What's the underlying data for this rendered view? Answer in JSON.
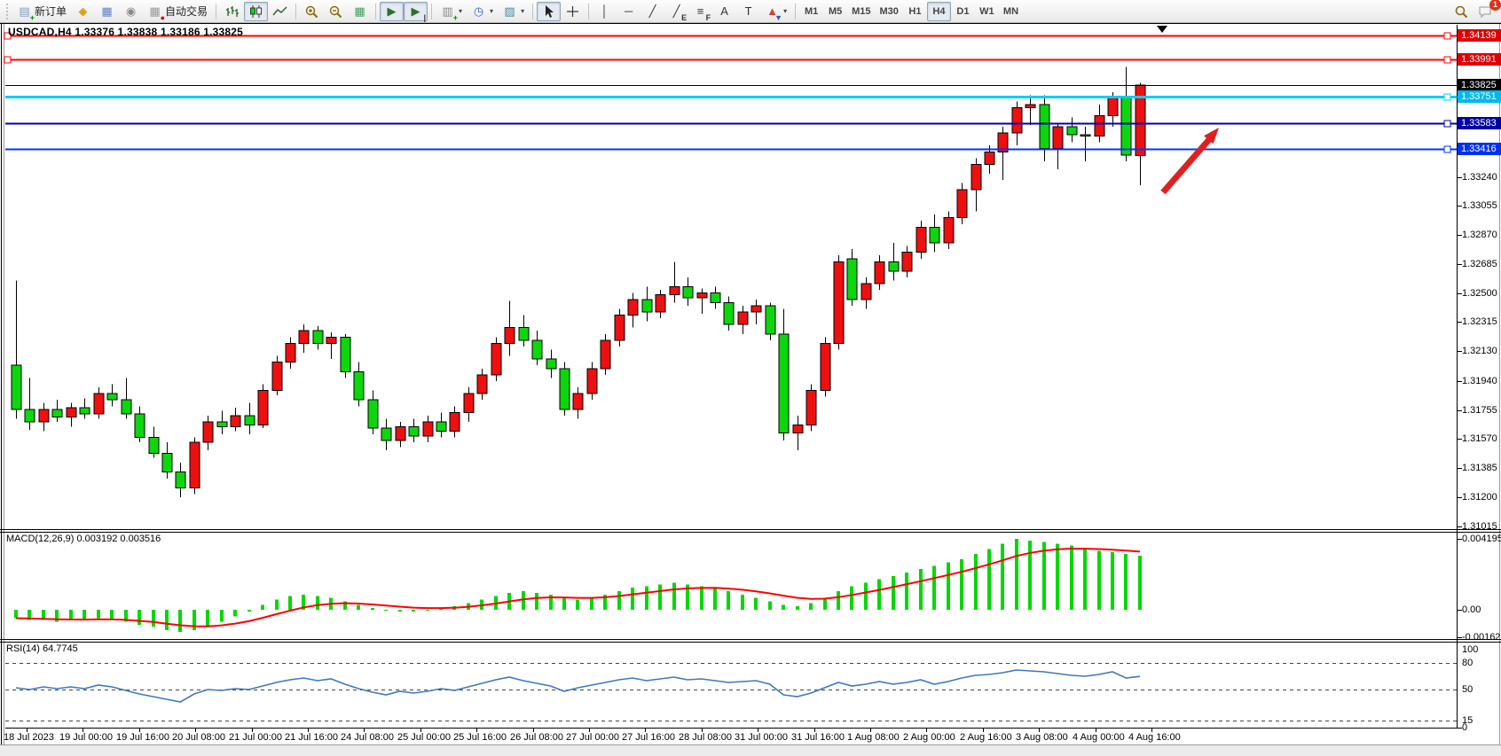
{
  "toolbar": {
    "left": [
      {
        "name": "new-order",
        "label": "新订单",
        "icon": "new-order-icon"
      },
      {
        "name": "market-watch",
        "icon": "market-watch-icon"
      },
      {
        "name": "navigator",
        "icon": "navigator-icon"
      },
      {
        "name": "signals",
        "icon": "signals-icon"
      },
      {
        "name": "autotrading",
        "label": "自动交易",
        "icon": "autotrading-icon"
      },
      {
        "sep": true
      },
      {
        "name": "bar-chart",
        "icon": "bar-chart-icon"
      },
      {
        "name": "candlestick-chart",
        "icon": "candlestick-icon",
        "active": true
      },
      {
        "name": "line-chart",
        "icon": "line-chart-icon"
      },
      {
        "sep": true
      },
      {
        "name": "zoom-in",
        "icon": "zoom-in-icon"
      },
      {
        "name": "zoom-out",
        "icon": "zoom-out-icon"
      },
      {
        "name": "tile-windows",
        "icon": "tile-windows-icon"
      },
      {
        "sep": true
      },
      {
        "name": "auto-scroll",
        "icon": "auto-scroll-icon",
        "active": true
      },
      {
        "name": "chart-shift",
        "icon": "chart-shift-icon",
        "active": true
      },
      {
        "sep": true
      },
      {
        "name": "indicators",
        "icon": "indicators-icon",
        "dropdown": true
      },
      {
        "name": "periods",
        "icon": "periods-icon",
        "dropdown": true
      },
      {
        "name": "templates",
        "icon": "templates-icon",
        "dropdown": true
      },
      {
        "sep": true
      },
      {
        "name": "cursor",
        "icon": "cursor-icon",
        "active": true
      },
      {
        "name": "crosshair",
        "icon": "crosshair-icon"
      },
      {
        "sep": true
      },
      {
        "name": "vertical-line",
        "icon": "vline-icon"
      },
      {
        "name": "horizontal-line",
        "icon": "hline-icon"
      },
      {
        "name": "trendline",
        "icon": "trendline-icon"
      },
      {
        "name": "equidistant-channel",
        "icon": "channel-icon"
      },
      {
        "name": "fibonacci",
        "icon": "fibonacci-icon"
      },
      {
        "name": "text",
        "icon": "text-icon"
      },
      {
        "name": "text-label",
        "icon": "text-label-icon"
      },
      {
        "name": "arrows",
        "icon": "arrows-icon",
        "dropdown": true
      },
      {
        "sep": true
      }
    ],
    "timeframes": [
      {
        "label": "M1"
      },
      {
        "label": "M5"
      },
      {
        "label": "M15"
      },
      {
        "label": "M30"
      },
      {
        "label": "H1"
      },
      {
        "label": "H4",
        "active": true
      },
      {
        "label": "D1"
      },
      {
        "label": "W1"
      },
      {
        "label": "MN"
      }
    ],
    "chat_badge": "1"
  },
  "chart_window": {
    "title": "USDCAD,H4  1.33376 1.33838 1.33186 1.33825"
  },
  "chart_data": {
    "type": "candlestick",
    "symbol": "USDCAD",
    "timeframe": "H4",
    "current_ohlc": {
      "open": "1.33376",
      "high": "1.33838",
      "low": "1.33186",
      "close": "1.33825"
    },
    "colors": {
      "bull": "#ee1010",
      "bear": "#0cd60c",
      "macd_hist": "#00d800",
      "macd_signal": "#ff0000",
      "rsi_line": "#3e78c0",
      "arrow": "#e02020"
    },
    "price_axis_ticks": [
      "1.33240",
      "1.33055",
      "1.32870",
      "1.32685",
      "1.32500",
      "1.32315",
      "1.32130",
      "1.31940",
      "1.31755",
      "1.31570",
      "1.31385",
      "1.31200",
      "1.31015"
    ],
    "time_axis": [
      "18 Jul 2023",
      "19 Jul 00:00",
      "19 Jul 16:00",
      "20 Jul 08:00",
      "21 Jul 00:00",
      "21 Jul 16:00",
      "24 Jul 08:00",
      "25 Jul 00:00",
      "25 Jul 16:00",
      "26 Jul 08:00",
      "27 Jul 00:00",
      "27 Jul 16:00",
      "28 Jul 08:00",
      "31 Jul 00:00",
      "31 Jul 16:00",
      "1 Aug 08:00",
      "2 Aug 00:00",
      "2 Aug 16:00",
      "3 Aug 08:00",
      "4 Aug 00:00",
      "4 Aug 16:00"
    ],
    "hlines": [
      {
        "price": 1.34139,
        "color": "#ff0000",
        "width": 2,
        "left_handle": true
      },
      {
        "price": 1.33991,
        "color": "#ff0000",
        "width": 2,
        "left_handle": true
      },
      {
        "price": 1.33825,
        "color": "#000000",
        "width": 1,
        "left_handle": false
      },
      {
        "price": 1.33751,
        "color": "#00ccff",
        "width": 3,
        "left_handle": false
      },
      {
        "price": 1.33583,
        "color": "#0000b0",
        "width": 2,
        "left_handle": false
      },
      {
        "price": 1.33416,
        "color": "#0033ff",
        "width": 2,
        "left_handle": false
      }
    ],
    "price_tags": [
      {
        "text": "1.34139",
        "price": 1.34139,
        "bg": "#e00000"
      },
      {
        "text": "1.33991",
        "price": 1.33991,
        "bg": "#e00000"
      },
      {
        "text": "1.33825",
        "price": 1.33825,
        "bg": "#000000"
      },
      {
        "text": "1.33751",
        "price": 1.33751,
        "bg": "#00b8ec"
      },
      {
        "text": "1.33583",
        "price": 1.33583,
        "bg": "#0000a8"
      },
      {
        "text": "1.33416",
        "price": 1.33416,
        "bg": "#0030f0"
      }
    ],
    "candles": [
      [
        1.3204,
        1.3258,
        1.317,
        1.3176
      ],
      [
        1.3176,
        1.3196,
        1.3163,
        1.3168
      ],
      [
        1.3168,
        1.318,
        1.3162,
        1.3176
      ],
      [
        1.3176,
        1.3182,
        1.3168,
        1.3171
      ],
      [
        1.3171,
        1.318,
        1.3165,
        1.3177
      ],
      [
        1.3177,
        1.3183,
        1.317,
        1.3173
      ],
      [
        1.3173,
        1.319,
        1.317,
        1.3186
      ],
      [
        1.3186,
        1.3192,
        1.3178,
        1.3182
      ],
      [
        1.3182,
        1.3196,
        1.317,
        1.3173
      ],
      [
        1.3173,
        1.3178,
        1.3155,
        1.3158
      ],
      [
        1.3158,
        1.3165,
        1.3145,
        1.3148
      ],
      [
        1.3148,
        1.3155,
        1.3132,
        1.3136
      ],
      [
        1.3136,
        1.3142,
        1.312,
        1.3126
      ],
      [
        1.3126,
        1.3158,
        1.3122,
        1.3155
      ],
      [
        1.3155,
        1.3172,
        1.315,
        1.3168
      ],
      [
        1.3168,
        1.3175,
        1.316,
        1.3165
      ],
      [
        1.3165,
        1.3177,
        1.3162,
        1.3172
      ],
      [
        1.3172,
        1.318,
        1.316,
        1.3166
      ],
      [
        1.3166,
        1.3192,
        1.3164,
        1.3188
      ],
      [
        1.3188,
        1.321,
        1.3185,
        1.3206
      ],
      [
        1.3206,
        1.3222,
        1.3202,
        1.3218
      ],
      [
        1.3218,
        1.323,
        1.3212,
        1.3226
      ],
      [
        1.3226,
        1.3229,
        1.3214,
        1.3218
      ],
      [
        1.3218,
        1.3225,
        1.3208,
        1.3222
      ],
      [
        1.3222,
        1.3224,
        1.3196,
        1.32
      ],
      [
        1.32,
        1.3206,
        1.3178,
        1.3182
      ],
      [
        1.3182,
        1.3188,
        1.316,
        1.3164
      ],
      [
        1.3164,
        1.317,
        1.315,
        1.3156
      ],
      [
        1.3156,
        1.3168,
        1.3152,
        1.3165
      ],
      [
        1.3165,
        1.317,
        1.3155,
        1.3159
      ],
      [
        1.3159,
        1.3172,
        1.3155,
        1.3168
      ],
      [
        1.3168,
        1.3174,
        1.3158,
        1.3162
      ],
      [
        1.3162,
        1.3178,
        1.3158,
        1.3174
      ],
      [
        1.3174,
        1.319,
        1.3168,
        1.3186
      ],
      [
        1.3186,
        1.3202,
        1.3182,
        1.3198
      ],
      [
        1.3198,
        1.3222,
        1.3194,
        1.3218
      ],
      [
        1.3218,
        1.3245,
        1.321,
        1.3228
      ],
      [
        1.3228,
        1.3236,
        1.3216,
        1.322
      ],
      [
        1.322,
        1.3226,
        1.3204,
        1.3208
      ],
      [
        1.3208,
        1.3214,
        1.3196,
        1.3202
      ],
      [
        1.3202,
        1.3206,
        1.3172,
        1.3176
      ],
      [
        1.3176,
        1.319,
        1.317,
        1.3186
      ],
      [
        1.3186,
        1.3206,
        1.3182,
        1.3202
      ],
      [
        1.3202,
        1.3224,
        1.3198,
        1.322
      ],
      [
        1.322,
        1.324,
        1.3216,
        1.3236
      ],
      [
        1.3236,
        1.325,
        1.3228,
        1.3246
      ],
      [
        1.3246,
        1.3254,
        1.3232,
        1.3238
      ],
      [
        1.3238,
        1.3252,
        1.3234,
        1.3249
      ],
      [
        1.3249,
        1.327,
        1.3244,
        1.3254
      ],
      [
        1.3254,
        1.326,
        1.3242,
        1.3247
      ],
      [
        1.3247,
        1.3253,
        1.3237,
        1.325
      ],
      [
        1.325,
        1.3254,
        1.324,
        1.3244
      ],
      [
        1.3244,
        1.3248,
        1.3226,
        1.323
      ],
      [
        1.323,
        1.3242,
        1.3224,
        1.3238
      ],
      [
        1.3238,
        1.3246,
        1.323,
        1.3242
      ],
      [
        1.3242,
        1.3244,
        1.322,
        1.3224
      ],
      [
        1.3224,
        1.324,
        1.3156,
        1.3161
      ],
      [
        1.3161,
        1.3172,
        1.315,
        1.3166
      ],
      [
        1.3166,
        1.3192,
        1.3162,
        1.3188
      ],
      [
        1.3188,
        1.3222,
        1.3184,
        1.3218
      ],
      [
        1.3218,
        1.3274,
        1.3214,
        1.327
      ],
      [
        1.3272,
        1.3278,
        1.3242,
        1.3246
      ],
      [
        1.3246,
        1.326,
        1.324,
        1.3256
      ],
      [
        1.3256,
        1.3274,
        1.3252,
        1.327
      ],
      [
        1.327,
        1.3282,
        1.3258,
        1.3264
      ],
      [
        1.3264,
        1.328,
        1.326,
        1.3276
      ],
      [
        1.3276,
        1.3296,
        1.3272,
        1.3292
      ],
      [
        1.3292,
        1.33,
        1.3276,
        1.3282
      ],
      [
        1.3282,
        1.3302,
        1.3278,
        1.3298
      ],
      [
        1.3298,
        1.332,
        1.3294,
        1.3316
      ],
      [
        1.3316,
        1.3336,
        1.3302,
        1.3332
      ],
      [
        1.3332,
        1.3344,
        1.3326,
        1.334
      ],
      [
        1.334,
        1.3356,
        1.3322,
        1.3352
      ],
      [
        1.3352,
        1.3372,
        1.3344,
        1.3368
      ],
      [
        1.3368,
        1.3376,
        1.3357,
        1.337
      ],
      [
        1.337,
        1.3376,
        1.3334,
        1.3342
      ],
      [
        1.3342,
        1.3358,
        1.3329,
        1.3356
      ],
      [
        1.3356,
        1.3362,
        1.3346,
        1.3351
      ],
      [
        1.3351,
        1.3356,
        1.3334,
        1.335
      ],
      [
        1.335,
        1.337,
        1.3346,
        1.3363
      ],
      [
        1.3363,
        1.3378,
        1.3356,
        1.3375
      ],
      [
        1.3375,
        1.3394,
        1.3334,
        1.3338
      ],
      [
        1.33376,
        1.33838,
        1.33186,
        1.33825
      ]
    ],
    "macd": {
      "label": "MACD(12,26,9) 0.003192 0.003516",
      "main_value": "0.003192",
      "signal_value": "0.003516",
      "axis_labels": [
        {
          "text": "0.004195",
          "v": 0.004195
        },
        {
          "text": "0.00",
          "v": 0
        },
        {
          "text": "-0.001625",
          "v": -0.001625
        }
      ],
      "values": [
        -0.0005,
        -0.0006,
        -0.0006,
        -0.0007,
        -0.0006,
        -0.0006,
        -0.0005,
        -0.0006,
        -0.0007,
        -0.0009,
        -0.001,
        -0.0012,
        -0.0013,
        -0.0012,
        -0.001,
        -0.0007,
        -0.0004,
        -0.0001,
        0.0003,
        0.0006,
        0.0008,
        0.0009,
        0.0008,
        0.0007,
        0.0005,
        0.0003,
        0.0001,
        0.0,
        -0.0001,
        -0.0001,
        0.0,
        0.0001,
        0.0002,
        0.0004,
        0.0006,
        0.0008,
        0.001,
        0.0011,
        0.001,
        0.0009,
        0.0007,
        0.0006,
        0.0007,
        0.0009,
        0.0011,
        0.0013,
        0.0014,
        0.0015,
        0.0016,
        0.0015,
        0.0014,
        0.0013,
        0.0011,
        0.0009,
        0.0007,
        0.0005,
        0.0003,
        0.0002,
        0.0004,
        0.0007,
        0.0011,
        0.0014,
        0.0016,
        0.0018,
        0.002,
        0.0022,
        0.0024,
        0.0026,
        0.0028,
        0.003,
        0.0033,
        0.0036,
        0.0039,
        0.0042,
        0.0041,
        0.004,
        0.0039,
        0.0038,
        0.0036,
        0.0035,
        0.0034,
        0.0033,
        0.0032
      ]
    },
    "rsi": {
      "label": "RSI(14) 64.7745",
      "current_value": "64.7745",
      "axis_labels": [
        {
          "text": "100",
          "v": 100
        },
        {
          "text": "80",
          "v": 80
        },
        {
          "text": "50",
          "v": 50
        },
        {
          "text": "15",
          "v": 15
        },
        {
          "text": "0",
          "v": 0
        }
      ],
      "levels": [
        80,
        50,
        15
      ],
      "values": [
        52,
        50,
        53,
        51,
        53,
        51,
        55,
        53,
        49,
        45,
        42,
        39,
        36,
        45,
        50,
        49,
        51,
        50,
        54,
        58,
        61,
        63,
        60,
        62,
        56,
        51,
        47,
        44,
        48,
        46,
        48,
        51,
        49,
        53,
        57,
        61,
        64,
        60,
        57,
        54,
        48,
        52,
        55,
        58,
        61,
        63,
        60,
        62,
        64,
        61,
        62,
        60,
        58,
        59,
        60,
        56,
        44,
        42,
        46,
        52,
        58,
        54,
        56,
        59,
        56,
        58,
        61,
        56,
        59,
        63,
        66,
        67,
        69,
        72,
        71,
        70,
        68,
        66,
        65,
        67,
        70,
        63,
        64.77
      ]
    },
    "arrow": {
      "from": [
        1311,
        217
      ],
      "to": [
        1374,
        144
      ]
    }
  }
}
